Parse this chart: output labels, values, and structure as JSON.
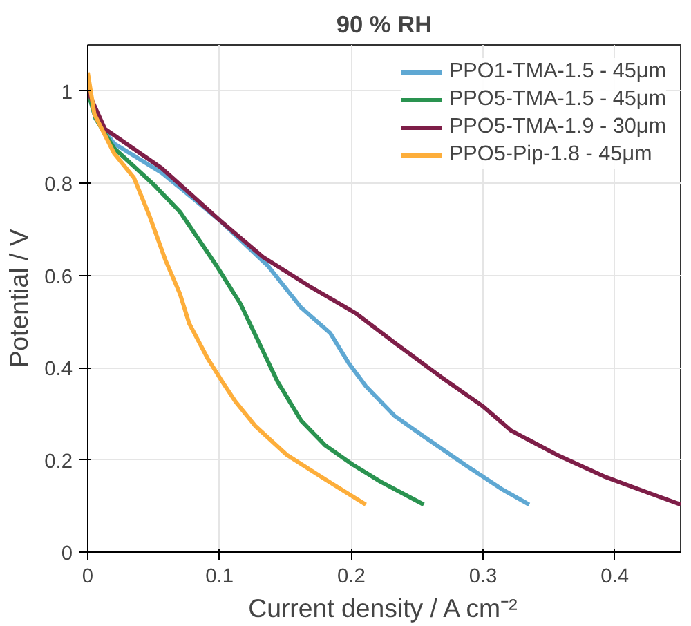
{
  "chart_data": {
    "type": "line",
    "title": "90 % RH",
    "xlabel": "Current density / A cm⁻²",
    "ylabel": "Potential / V",
    "xlim": [
      0,
      0.45
    ],
    "ylim": [
      0,
      1.1
    ],
    "xticks": [
      0,
      0.1,
      0.2,
      0.3,
      0.4
    ],
    "yticks": [
      0,
      0.2,
      0.4,
      0.6,
      0.8,
      1
    ],
    "grid": true,
    "legend": "top right",
    "line_style": "solid",
    "series": [
      {
        "name": "PPO1-TMA-1.5 - 45μm",
        "color": "#5fa8d3",
        "x": [
          0,
          0.006,
          0.02,
          0.056,
          0.1,
          0.137,
          0.162,
          0.184,
          0.198,
          0.211,
          0.233,
          0.254,
          0.286,
          0.314,
          0.335
        ],
        "values": [
          1.0,
          0.94,
          0.886,
          0.823,
          0.72,
          0.62,
          0.53,
          0.475,
          0.41,
          0.36,
          0.295,
          0.253,
          0.19,
          0.137,
          0.103
        ]
      },
      {
        "name": "PPO5-TMA-1.5 - 45μm",
        "color": "#2a9350",
        "x": [
          0,
          0.006,
          0.02,
          0.049,
          0.07,
          0.098,
          0.116,
          0.13,
          0.144,
          0.162,
          0.18,
          0.201,
          0.222,
          0.255
        ],
        "values": [
          1.0,
          0.94,
          0.876,
          0.8,
          0.738,
          0.62,
          0.538,
          0.454,
          0.37,
          0.285,
          0.232,
          0.19,
          0.153,
          0.103
        ]
      },
      {
        "name": "PPO5-TMA-1.9 - 30μm",
        "color": "#7e1e48",
        "x": [
          0,
          0.013,
          0.056,
          0.1,
          0.133,
          0.168,
          0.204,
          0.233,
          0.268,
          0.3,
          0.321,
          0.356,
          0.392,
          0.427,
          0.45
        ],
        "values": [
          1.0,
          0.918,
          0.833,
          0.72,
          0.64,
          0.577,
          0.517,
          0.454,
          0.38,
          0.316,
          0.264,
          0.211,
          0.164,
          0.127,
          0.103
        ]
      },
      {
        "name": "PPO5-Pip-1.8 - 45μm",
        "color": "#fdae3b",
        "x": [
          0,
          0.005,
          0.02,
          0.035,
          0.047,
          0.059,
          0.07,
          0.077,
          0.091,
          0.102,
          0.112,
          0.127,
          0.151,
          0.18,
          0.211
        ],
        "values": [
          1.04,
          0.95,
          0.865,
          0.812,
          0.728,
          0.633,
          0.56,
          0.496,
          0.42,
          0.37,
          0.327,
          0.274,
          0.211,
          0.158,
          0.103
        ]
      }
    ]
  }
}
